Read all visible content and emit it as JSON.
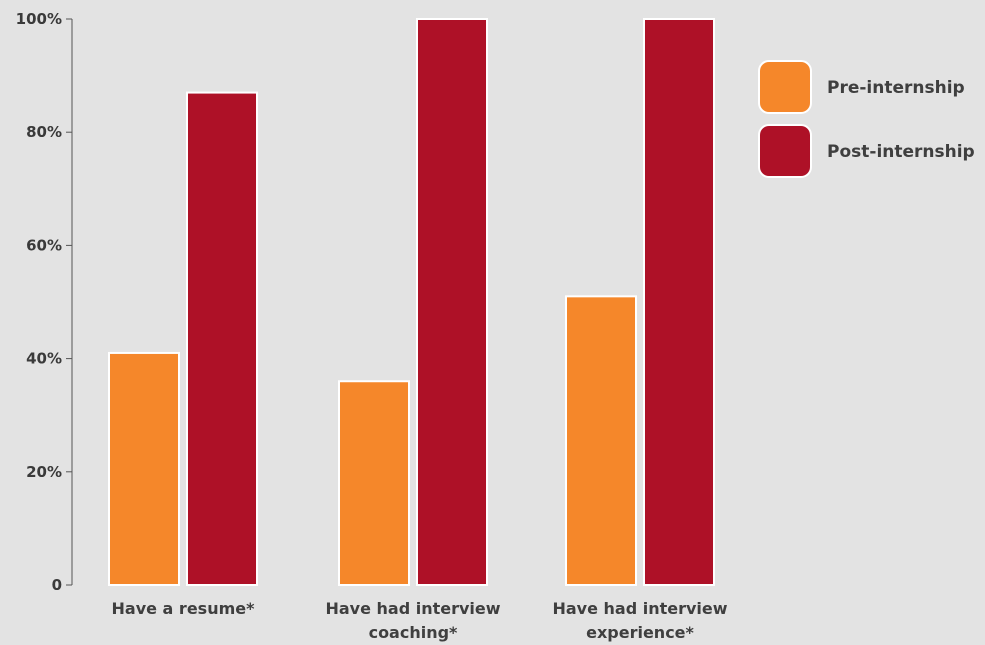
{
  "chart_data": {
    "type": "bar",
    "title": "",
    "xlabel": "",
    "ylabel": "",
    "ylim": [
      0,
      100
    ],
    "y_ticks": [
      0,
      20,
      40,
      60,
      80,
      100
    ],
    "y_tick_labels": [
      "0",
      "20%",
      "40%",
      "60%",
      "80%",
      "100%"
    ],
    "grid": false,
    "legend_position": "top-right",
    "categories": [
      [
        "Have a resume*"
      ],
      [
        "Have had interview",
        "coaching*"
      ],
      [
        "Have had interview",
        "experience*"
      ]
    ],
    "series": [
      {
        "name": "Pre-internship",
        "color": "#f5872a",
        "values": [
          41,
          36,
          51
        ]
      },
      {
        "name": "Post-internship",
        "color": "#ae1127",
        "values": [
          87,
          100,
          100
        ]
      }
    ]
  }
}
